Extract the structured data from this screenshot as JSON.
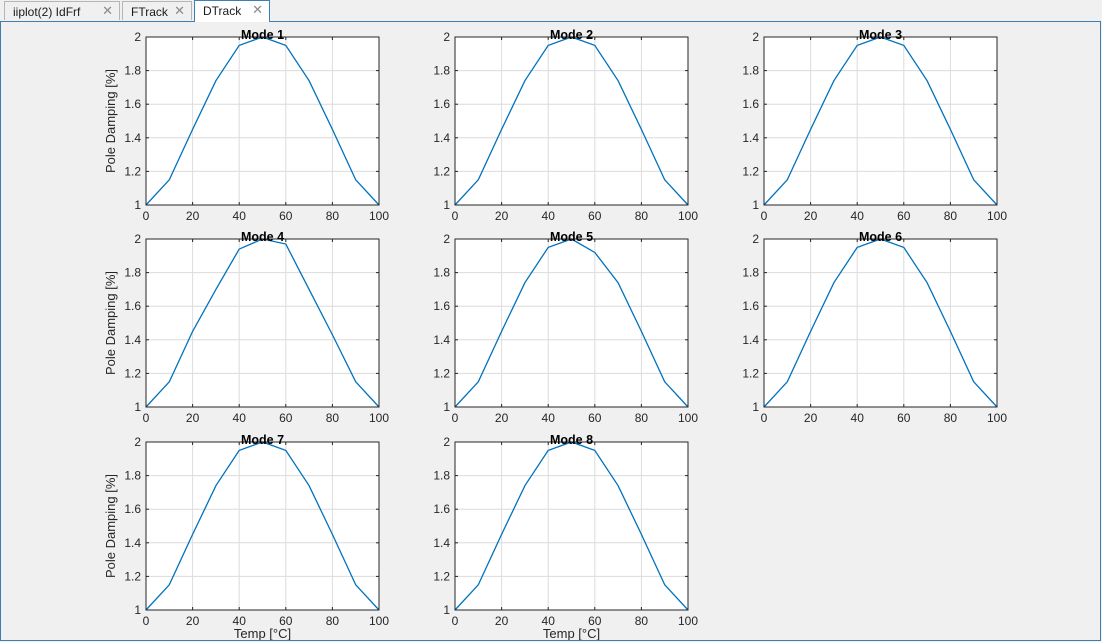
{
  "tabs": [
    {
      "label": "iiplot(2) IdFrf",
      "close": "✕",
      "active": false
    },
    {
      "label": "FTrack",
      "close": "✕",
      "active": false
    },
    {
      "label": "DTrack",
      "close": "✕",
      "active": true
    }
  ],
  "colors": {
    "line": "#0072bd",
    "grid": "#dcdcdc",
    "axis": "#262626",
    "plot_bg": "#ffffff"
  },
  "chart_data": [
    {
      "type": "line",
      "title": "Mode 1",
      "ylabel": "Pole Damping [%]",
      "xlabel": "",
      "x": [
        0,
        10,
        20,
        30,
        40,
        50,
        60,
        70,
        80,
        90,
        100
      ],
      "series": [
        {
          "values": [
            1.0,
            1.15,
            1.45,
            1.74,
            1.95,
            2.0,
            1.95,
            1.74,
            1.45,
            1.15,
            1.0
          ]
        }
      ],
      "xlim": [
        0,
        100
      ],
      "ylim": [
        1,
        2
      ],
      "xticks": [
        "0",
        "20",
        "40",
        "60",
        "80",
        "100"
      ],
      "yticks": [
        "1",
        "1.2",
        "1.4",
        "1.6",
        "1.8",
        "2"
      ],
      "grid": true
    },
    {
      "type": "line",
      "title": "Mode 2",
      "ylabel": "",
      "xlabel": "",
      "x": [
        0,
        10,
        20,
        30,
        40,
        50,
        60,
        70,
        80,
        90,
        100
      ],
      "series": [
        {
          "values": [
            1.0,
            1.15,
            1.45,
            1.74,
            1.95,
            2.0,
            1.95,
            1.74,
            1.45,
            1.15,
            1.0
          ]
        }
      ],
      "xlim": [
        0,
        100
      ],
      "ylim": [
        1,
        2
      ],
      "xticks": [
        "0",
        "20",
        "40",
        "60",
        "80",
        "100"
      ],
      "yticks": [
        "1",
        "1.2",
        "1.4",
        "1.6",
        "1.8",
        "2"
      ],
      "grid": true
    },
    {
      "type": "line",
      "title": "Mode 3",
      "ylabel": "",
      "xlabel": "",
      "x": [
        0,
        10,
        20,
        30,
        40,
        50,
        60,
        70,
        80,
        90,
        100
      ],
      "series": [
        {
          "values": [
            1.0,
            1.15,
            1.45,
            1.74,
            1.95,
            2.0,
            1.95,
            1.74,
            1.45,
            1.15,
            1.0
          ]
        }
      ],
      "xlim": [
        0,
        100
      ],
      "ylim": [
        1,
        2
      ],
      "xticks": [
        "0",
        "20",
        "40",
        "60",
        "80",
        "100"
      ],
      "yticks": [
        "1",
        "1.2",
        "1.4",
        "1.6",
        "1.8",
        "2"
      ],
      "grid": true
    },
    {
      "type": "line",
      "title": "Mode 4",
      "ylabel": "Pole Damping [%]",
      "xlabel": "",
      "x": [
        0,
        10,
        20,
        30,
        40,
        50,
        60,
        70,
        80,
        90,
        100
      ],
      "series": [
        {
          "values": [
            1.0,
            1.15,
            1.45,
            1.7,
            1.94,
            2.0,
            1.97,
            1.7,
            1.43,
            1.15,
            1.0
          ]
        }
      ],
      "xlim": [
        0,
        100
      ],
      "ylim": [
        1,
        2
      ],
      "xticks": [
        "0",
        "20",
        "40",
        "60",
        "80",
        "100"
      ],
      "yticks": [
        "1",
        "1.2",
        "1.4",
        "1.6",
        "1.8",
        "2"
      ],
      "grid": true
    },
    {
      "type": "line",
      "title": "Mode 5",
      "ylabel": "",
      "xlabel": "",
      "x": [
        0,
        10,
        20,
        30,
        40,
        50,
        60,
        70,
        80,
        90,
        100
      ],
      "series": [
        {
          "values": [
            1.0,
            1.15,
            1.45,
            1.74,
            1.95,
            2.0,
            1.92,
            1.74,
            1.45,
            1.15,
            1.0
          ]
        }
      ],
      "xlim": [
        0,
        100
      ],
      "ylim": [
        1,
        2
      ],
      "xticks": [
        "0",
        "20",
        "40",
        "60",
        "80",
        "100"
      ],
      "yticks": [
        "1",
        "1.2",
        "1.4",
        "1.6",
        "1.8",
        "2"
      ],
      "grid": true
    },
    {
      "type": "line",
      "title": "Mode 6",
      "ylabel": "",
      "xlabel": "",
      "x": [
        0,
        10,
        20,
        30,
        40,
        50,
        60,
        70,
        80,
        90,
        100
      ],
      "series": [
        {
          "values": [
            1.0,
            1.15,
            1.45,
            1.74,
            1.95,
            2.0,
            1.95,
            1.74,
            1.45,
            1.15,
            1.0
          ]
        }
      ],
      "xlim": [
        0,
        100
      ],
      "ylim": [
        1,
        2
      ],
      "xticks": [
        "0",
        "20",
        "40",
        "60",
        "80",
        "100"
      ],
      "yticks": [
        "1",
        "1.2",
        "1.4",
        "1.6",
        "1.8",
        "2"
      ],
      "grid": true
    },
    {
      "type": "line",
      "title": "Mode 7",
      "ylabel": "Pole Damping [%]",
      "xlabel": "Temp [°C]",
      "x": [
        0,
        10,
        20,
        30,
        40,
        50,
        60,
        70,
        80,
        90,
        100
      ],
      "series": [
        {
          "values": [
            1.0,
            1.15,
            1.45,
            1.74,
            1.95,
            2.0,
            1.95,
            1.74,
            1.45,
            1.15,
            1.0
          ]
        }
      ],
      "xlim": [
        0,
        100
      ],
      "ylim": [
        1,
        2
      ],
      "xticks": [
        "0",
        "20",
        "40",
        "60",
        "80",
        "100"
      ],
      "yticks": [
        "1",
        "1.2",
        "1.4",
        "1.6",
        "1.8",
        "2"
      ],
      "grid": true
    },
    {
      "type": "line",
      "title": "Mode 8",
      "ylabel": "",
      "xlabel": "Temp [°C]",
      "x": [
        0,
        10,
        20,
        30,
        40,
        50,
        60,
        70,
        80,
        90,
        100
      ],
      "series": [
        {
          "values": [
            1.0,
            1.15,
            1.45,
            1.74,
            1.95,
            2.0,
            1.95,
            1.74,
            1.45,
            1.15,
            1.0
          ]
        }
      ],
      "xlim": [
        0,
        100
      ],
      "ylim": [
        1,
        2
      ],
      "xticks": [
        "0",
        "20",
        "40",
        "60",
        "80",
        "100"
      ],
      "yticks": [
        "1",
        "1.2",
        "1.4",
        "1.6",
        "1.8",
        "2"
      ],
      "grid": true
    }
  ]
}
